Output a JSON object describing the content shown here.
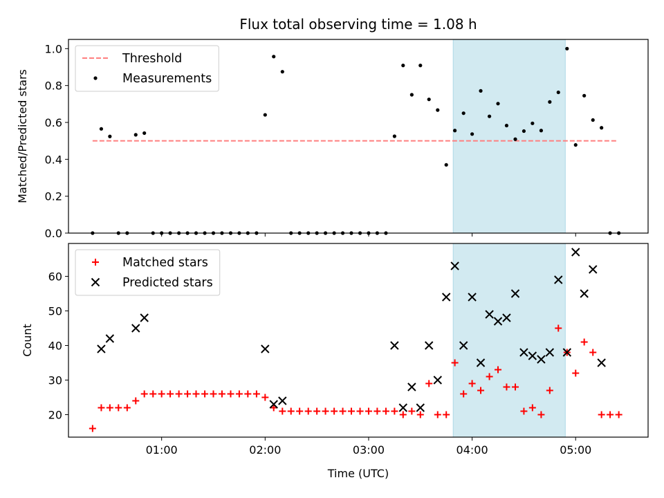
{
  "chart_data": {
    "title": "Flux total observing time = 1.08 h",
    "xlabel": "Time (UTC)",
    "x_unit": "hours UTC",
    "xlim": [
      0.1,
      5.7
    ],
    "xticks": [
      {
        "value": 1,
        "label": "01:00"
      },
      {
        "value": 2,
        "label": "02:00"
      },
      {
        "value": 3,
        "label": "03:00"
      },
      {
        "value": 4,
        "label": "04:00"
      },
      {
        "value": 5,
        "label": "05:00"
      }
    ],
    "highlight_span": {
      "x": [
        3.817,
        4.9
      ],
      "color": "#add8e6"
    },
    "panels": [
      {
        "type": "scatter",
        "ylabel": "Matched/Predicted stars",
        "ylim": [
          0,
          1.05
        ],
        "yticks": [
          "0.0",
          "0.2",
          "0.4",
          "0.6",
          "0.8",
          "1.0"
        ],
        "ytick_values": [
          0,
          0.2,
          0.4,
          0.6,
          0.8,
          1.0
        ],
        "grid": false,
        "legend": "top-left",
        "threshold": {
          "name": "Threshold",
          "value": 0.5,
          "x": [
            0.333,
            5.4
          ],
          "color": "#ff7f7f",
          "style": "dashed"
        },
        "series": [
          {
            "name": "Measurements",
            "color": "#000000",
            "marker": "dot",
            "x": [
              0.333,
              0.417,
              0.5,
              0.583,
              0.667,
              0.75,
              0.833,
              0.917,
              1.0,
              1.083,
              1.167,
              1.25,
              1.333,
              1.417,
              1.5,
              1.583,
              1.667,
              1.75,
              1.833,
              1.917,
              2.0,
              2.083,
              2.167,
              2.25,
              2.333,
              2.417,
              2.5,
              2.583,
              2.667,
              2.75,
              2.833,
              2.917,
              3.0,
              3.083,
              3.167,
              3.25,
              3.333,
              3.417,
              3.5,
              3.583,
              3.667,
              3.75,
              3.833,
              3.917,
              4.0,
              4.083,
              4.167,
              4.25,
              4.333,
              4.417,
              4.5,
              4.583,
              4.667,
              4.75,
              4.833,
              4.917,
              5.0,
              5.083,
              5.167,
              5.25,
              5.333,
              5.417
            ],
            "y": [
              0,
              0.565,
              0.524,
              0,
              0,
              0.533,
              0.542,
              0,
              0,
              0,
              0,
              0,
              0,
              0,
              0,
              0,
              0,
              0,
              0,
              0,
              0.641,
              0.957,
              0.875,
              0,
              0,
              0,
              0,
              0,
              0,
              0,
              0,
              0,
              0,
              0,
              0,
              0.525,
              0.909,
              0.75,
              0.909,
              0.725,
              0.667,
              0.37,
              0.556,
              0.65,
              0.537,
              0.771,
              0.633,
              0.702,
              0.583,
              0.509,
              0.553,
              0.595,
              0.556,
              0.711,
              0.763,
              1.0,
              0.478,
              0.745,
              0.613,
              0.571,
              0,
              0
            ]
          }
        ]
      },
      {
        "type": "scatter",
        "ylabel": "Count",
        "ylim": [
          13.5,
          69.5
        ],
        "yticks": [
          "20",
          "30",
          "40",
          "50",
          "60"
        ],
        "ytick_values": [
          20,
          30,
          40,
          50,
          60
        ],
        "grid": false,
        "legend": "top-left",
        "series": [
          {
            "name": "Matched stars",
            "color": "#ff0000",
            "marker": "plus",
            "x": [
              0.333,
              0.417,
              0.5,
              0.583,
              0.667,
              0.75,
              0.833,
              0.917,
              1.0,
              1.083,
              1.167,
              1.25,
              1.333,
              1.417,
              1.5,
              1.583,
              1.667,
              1.75,
              1.833,
              1.917,
              2.0,
              2.083,
              2.167,
              2.25,
              2.333,
              2.417,
              2.5,
              2.583,
              2.667,
              2.75,
              2.833,
              2.917,
              3.0,
              3.083,
              3.167,
              3.25,
              3.333,
              3.417,
              3.5,
              3.583,
              3.667,
              3.75,
              3.833,
              3.917,
              4.0,
              4.083,
              4.167,
              4.25,
              4.333,
              4.417,
              4.5,
              4.583,
              4.667,
              4.75,
              4.833,
              4.917,
              5.0,
              5.083,
              5.167,
              5.25,
              5.333,
              5.417
            ],
            "y": [
              16,
              22,
              22,
              22,
              22,
              24,
              26,
              26,
              26,
              26,
              26,
              26,
              26,
              26,
              26,
              26,
              26,
              26,
              26,
              26,
              25,
              22,
              21,
              21,
              21,
              21,
              21,
              21,
              21,
              21,
              21,
              21,
              21,
              21,
              21,
              21,
              20,
              21,
              20,
              29,
              20,
              20,
              35,
              26,
              29,
              27,
              31,
              33,
              28,
              28,
              21,
              22,
              20,
              27,
              45,
              38,
              32,
              41,
              38,
              20,
              20,
              20
            ]
          },
          {
            "name": "Predicted stars",
            "color": "#000000",
            "marker": "x",
            "x": [
              0.417,
              0.5,
              0.75,
              0.833,
              2.0,
              2.083,
              2.167,
              3.25,
              3.333,
              3.417,
              3.5,
              3.583,
              3.667,
              3.75,
              3.833,
              3.917,
              4.0,
              4.083,
              4.167,
              4.25,
              4.333,
              4.417,
              4.5,
              4.583,
              4.667,
              4.75,
              4.833,
              4.917,
              5.0,
              5.083,
              5.167,
              5.25
            ],
            "y": [
              39,
              42,
              45,
              48,
              39,
              23,
              24,
              40,
              22,
              28,
              22,
              40,
              30,
              54,
              63,
              40,
              54,
              35,
              49,
              47,
              48,
              55,
              38,
              37,
              36,
              38,
              59,
              38,
              67,
              55,
              62,
              35
            ]
          }
        ]
      }
    ]
  }
}
